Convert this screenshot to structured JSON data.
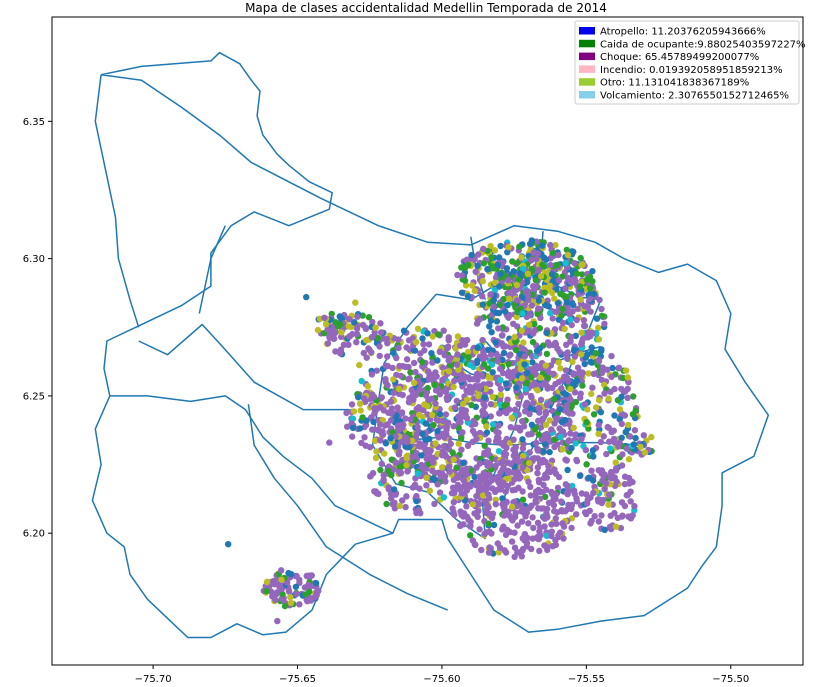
{
  "chart_data": {
    "type": "scatter",
    "title": "Mapa de clases accidentalidad Medellin Temporada de 2014",
    "xlabel": "",
    "ylabel": "",
    "xlim": [
      -75.735,
      -75.475
    ],
    "ylim": [
      6.152,
      6.388
    ],
    "x_ticks": [
      -75.7,
      -75.65,
      -75.6,
      -75.55,
      -75.5
    ],
    "x_tick_labels": [
      "−75.70",
      "−75.65",
      "−75.60",
      "−75.55",
      "−75.50"
    ],
    "y_ticks": [
      6.2,
      6.25,
      6.3,
      6.35
    ],
    "y_tick_labels": [
      "6.20",
      "6.25",
      "6.30",
      "6.35"
    ],
    "grid": false,
    "legend_position": "top-right",
    "series": [
      {
        "name": "Atropello: 11.20376205943666%",
        "color": "#0000ee"
      },
      {
        "name": "Caida de ocupante:9.88025403597227%",
        "color": "#008000"
      },
      {
        "name": "Choque: 65.45789499200077%",
        "color": "#800080"
      },
      {
        "name": "Incendio: 0.019392058951859213%",
        "color": "#ffb6c1"
      },
      {
        "name": "Otro: 11.131041838367189%",
        "color": "#9acd32"
      },
      {
        "name": "Volcamiento: 2.3076550152712465%",
        "color": "#87ceeb"
      }
    ],
    "point_colors": {
      "purple": "#9467bd",
      "green": "#2ca02c",
      "blue": "#1f77b4",
      "olive": "#bcbd22",
      "cyan": "#17becf"
    },
    "boundary_color": "#1f77b4",
    "boundaries": [
      [
        [
          -75.718,
          6.367
        ],
        [
          -75.704,
          6.37
        ],
        [
          -75.68,
          6.372
        ],
        [
          -75.677,
          6.375
        ],
        [
          -75.67,
          6.371
        ],
        [
          -75.666,
          6.365
        ],
        [
          -75.663,
          6.361
        ],
        [
          -75.664,
          6.352
        ],
        [
          -75.662,
          6.345
        ],
        [
          -75.657,
          6.338
        ],
        [
          -75.653,
          6.334
        ],
        [
          -75.646,
          6.328
        ],
        [
          -75.638,
          6.324
        ],
        [
          -75.639,
          6.318
        ],
        [
          -75.653,
          6.312
        ],
        [
          -75.665,
          6.317
        ],
        [
          -75.673,
          6.312
        ],
        [
          -75.68,
          6.302
        ],
        [
          -75.68,
          6.29
        ],
        [
          -75.69,
          6.283
        ],
        [
          -75.702,
          6.277
        ],
        [
          -75.716,
          6.27
        ],
        [
          -75.717,
          6.26
        ],
        [
          -75.715,
          6.25
        ],
        [
          -75.72,
          6.238
        ],
        [
          -75.718,
          6.225
        ],
        [
          -75.721,
          6.212
        ],
        [
          -75.716,
          6.2
        ],
        [
          -75.71,
          6.195
        ],
        [
          -75.708,
          6.185
        ],
        [
          -75.702,
          6.176
        ],
        [
          -75.695,
          6.169
        ],
        [
          -75.688,
          6.162
        ],
        [
          -75.68,
          6.162
        ],
        [
          -75.671,
          6.167
        ],
        [
          -75.662,
          6.163
        ],
        [
          -75.654,
          6.164
        ],
        [
          -75.645,
          6.172
        ],
        [
          -75.64,
          6.185
        ],
        [
          -75.63,
          6.196
        ],
        [
          -75.617,
          6.2
        ],
        [
          -75.615,
          6.205
        ],
        [
          -75.6,
          6.205
        ],
        [
          -75.598,
          6.198
        ],
        [
          -75.59,
          6.185
        ],
        [
          -75.582,
          6.172
        ],
        [
          -75.57,
          6.164
        ],
        [
          -75.56,
          6.165
        ],
        [
          -75.545,
          6.168
        ],
        [
          -75.53,
          6.17
        ],
        [
          -75.515,
          6.18
        ],
        [
          -75.51,
          6.188
        ],
        [
          -75.505,
          6.195
        ],
        [
          -75.503,
          6.21
        ],
        [
          -75.503,
          6.222
        ],
        [
          -75.492,
          6.228
        ],
        [
          -75.487,
          6.243
        ],
        [
          -75.495,
          6.255
        ],
        [
          -75.502,
          6.267
        ],
        [
          -75.5,
          6.28
        ],
        [
          -75.505,
          6.292
        ],
        [
          -75.515,
          6.298
        ],
        [
          -75.525,
          6.295
        ],
        [
          -75.537,
          6.3
        ],
        [
          -75.547,
          6.306
        ],
        [
          -75.56,
          6.31
        ],
        [
          -75.575,
          6.312
        ],
        [
          -75.59,
          6.305
        ],
        [
          -75.605,
          6.306
        ],
        [
          -75.622,
          6.312
        ],
        [
          -75.642,
          6.322
        ],
        [
          -75.666,
          6.335
        ],
        [
          -75.677,
          6.345
        ],
        [
          -75.69,
          6.355
        ],
        [
          -75.704,
          6.365
        ],
        [
          -75.718,
          6.367
        ]
      ],
      [
        [
          -75.718,
          6.367
        ],
        [
          -75.72,
          6.35
        ],
        [
          -75.716,
          6.33
        ],
        [
          -75.713,
          6.315
        ],
        [
          -75.712,
          6.3
        ],
        [
          -75.708,
          6.285
        ],
        [
          -75.705,
          6.275
        ]
      ],
      [
        [
          -75.675,
          6.312
        ],
        [
          -75.68,
          6.3
        ],
        [
          -75.682,
          6.29
        ],
        [
          -75.684,
          6.28
        ]
      ],
      [
        [
          -75.705,
          6.27
        ],
        [
          -75.695,
          6.265
        ],
        [
          -75.683,
          6.276
        ],
        [
          -75.676,
          6.268
        ],
        [
          -75.665,
          6.255
        ],
        [
          -75.648,
          6.245
        ],
        [
          -75.632,
          6.245
        ]
      ],
      [
        [
          -75.715,
          6.25
        ],
        [
          -75.702,
          6.25
        ],
        [
          -75.687,
          6.248
        ],
        [
          -75.675,
          6.25
        ],
        [
          -75.668,
          6.245
        ],
        [
          -75.662,
          6.235
        ],
        [
          -75.655,
          6.228
        ],
        [
          -75.645,
          6.22
        ],
        [
          -75.637,
          6.21
        ],
        [
          -75.625,
          6.204
        ],
        [
          -75.617,
          6.2
        ]
      ],
      [
        [
          -75.667,
          6.247
        ],
        [
          -75.665,
          6.232
        ],
        [
          -75.658,
          6.22
        ],
        [
          -75.65,
          6.21
        ],
        [
          -75.64,
          6.195
        ],
        [
          -75.625,
          6.185
        ],
        [
          -75.612,
          6.178
        ],
        [
          -75.598,
          6.172
        ]
      ],
      [
        [
          -75.602,
          6.287
        ],
        [
          -75.59,
          6.285
        ],
        [
          -75.582,
          6.29
        ],
        [
          -75.575,
          6.293
        ],
        [
          -75.568,
          6.294
        ],
        [
          -75.56,
          6.29
        ],
        [
          -75.552,
          6.286
        ],
        [
          -75.545,
          6.285
        ]
      ],
      [
        [
          -75.602,
          6.287
        ],
        [
          -75.612,
          6.275
        ],
        [
          -75.62,
          6.262
        ],
        [
          -75.622,
          6.248
        ],
        [
          -75.624,
          6.232
        ],
        [
          -75.616,
          6.218
        ],
        [
          -75.605,
          6.215
        ],
        [
          -75.595,
          6.205
        ],
        [
          -75.585,
          6.198
        ]
      ],
      [
        [
          -75.585,
          6.27
        ],
        [
          -75.578,
          6.262
        ],
        [
          -75.572,
          6.25
        ],
        [
          -75.575,
          6.238
        ],
        [
          -75.58,
          6.226
        ],
        [
          -75.586,
          6.212
        ],
        [
          -75.585,
          6.198
        ]
      ],
      [
        [
          -75.545,
          6.285
        ],
        [
          -75.55,
          6.272
        ],
        [
          -75.555,
          6.262
        ],
        [
          -75.56,
          6.25
        ],
        [
          -75.565,
          6.24
        ],
        [
          -75.57,
          6.228
        ],
        [
          -75.575,
          6.22
        ],
        [
          -75.58,
          6.21
        ]
      ],
      [
        [
          -75.61,
          6.234
        ],
        [
          -75.6,
          6.235
        ],
        [
          -75.59,
          6.233
        ],
        [
          -75.578,
          6.232
        ],
        [
          -75.562,
          6.233
        ],
        [
          -75.545,
          6.233
        ],
        [
          -75.53,
          6.232
        ]
      ],
      [
        [
          -75.6,
          6.265
        ],
        [
          -75.59,
          6.258
        ],
        [
          -75.578,
          6.255
        ],
        [
          -75.565,
          6.26
        ],
        [
          -75.555,
          6.265
        ],
        [
          -75.545,
          6.268
        ]
      ],
      [
        [
          -75.59,
          6.308
        ],
        [
          -75.588,
          6.295
        ],
        [
          -75.585,
          6.285
        ]
      ],
      [
        [
          -75.565,
          6.31
        ],
        [
          -75.566,
          6.295
        ],
        [
          -75.568,
          6.285
        ]
      ]
    ],
    "point_clusters": [
      {
        "cx": -75.587,
        "cy": 6.243,
        "rx": 0.033,
        "ry": 0.028,
        "n": 650,
        "mix": [
          0.72,
          0.08,
          0.08,
          0.1,
          0.02
        ]
      },
      {
        "cx": -75.566,
        "cy": 6.275,
        "rx": 0.023,
        "ry": 0.025,
        "n": 420,
        "mix": [
          0.45,
          0.17,
          0.2,
          0.15,
          0.03
        ]
      },
      {
        "cx": -75.571,
        "cy": 6.293,
        "rx": 0.024,
        "ry": 0.014,
        "n": 300,
        "mix": [
          0.35,
          0.2,
          0.25,
          0.17,
          0.03
        ]
      },
      {
        "cx": -75.575,
        "cy": 6.21,
        "rx": 0.022,
        "ry": 0.019,
        "n": 340,
        "mix": [
          0.85,
          0.04,
          0.03,
          0.07,
          0.01
        ]
      },
      {
        "cx": -75.606,
        "cy": 6.255,
        "rx": 0.024,
        "ry": 0.02,
        "n": 250,
        "mix": [
          0.62,
          0.1,
          0.12,
          0.13,
          0.03
        ]
      },
      {
        "cx": -75.547,
        "cy": 6.242,
        "rx": 0.015,
        "ry": 0.025,
        "n": 220,
        "mix": [
          0.48,
          0.18,
          0.15,
          0.15,
          0.04
        ]
      },
      {
        "cx": -75.608,
        "cy": 6.222,
        "rx": 0.018,
        "ry": 0.015,
        "n": 150,
        "mix": [
          0.7,
          0.08,
          0.1,
          0.1,
          0.02
        ]
      },
      {
        "cx": -75.542,
        "cy": 6.212,
        "rx": 0.01,
        "ry": 0.012,
        "n": 80,
        "mix": [
          0.8,
          0.05,
          0.05,
          0.09,
          0.01
        ]
      },
      {
        "cx": -75.63,
        "cy": 6.272,
        "rx": 0.012,
        "ry": 0.008,
        "n": 75,
        "mix": [
          0.55,
          0.15,
          0.12,
          0.16,
          0.02
        ]
      },
      {
        "cx": -75.624,
        "cy": 6.241,
        "rx": 0.01,
        "ry": 0.01,
        "n": 70,
        "mix": [
          0.7,
          0.08,
          0.1,
          0.1,
          0.02
        ]
      },
      {
        "cx": -75.652,
        "cy": 6.18,
        "rx": 0.01,
        "ry": 0.007,
        "n": 90,
        "mix": [
          0.55,
          0.12,
          0.15,
          0.16,
          0.02
        ]
      },
      {
        "cx": -75.638,
        "cy": 6.275,
        "rx": 0.006,
        "ry": 0.005,
        "n": 30,
        "mix": [
          0.5,
          0.15,
          0.15,
          0.18,
          0.02
        ]
      },
      {
        "cx": -75.53,
        "cy": 6.232,
        "rx": 0.005,
        "ry": 0.004,
        "n": 20,
        "mix": [
          0.3,
          0.2,
          0.3,
          0.1,
          0.1
        ]
      },
      {
        "cx": -75.617,
        "cy": 6.224,
        "rx": 0.006,
        "ry": 0.003,
        "n": 20,
        "mix": [
          0.6,
          0.1,
          0.1,
          0.18,
          0.02
        ]
      }
    ],
    "single_points": [
      {
        "x": -75.674,
        "y": 6.196,
        "c": "blue"
      },
      {
        "x": -75.647,
        "y": 6.286,
        "c": "blue"
      },
      {
        "x": -75.63,
        "y": 6.284,
        "c": "olive"
      },
      {
        "x": -75.639,
        "y": 6.233,
        "c": "purple"
      },
      {
        "x": -75.657,
        "y": 6.168,
        "c": "purple"
      },
      {
        "x": -75.62,
        "y": 6.229,
        "c": "olive"
      }
    ]
  }
}
